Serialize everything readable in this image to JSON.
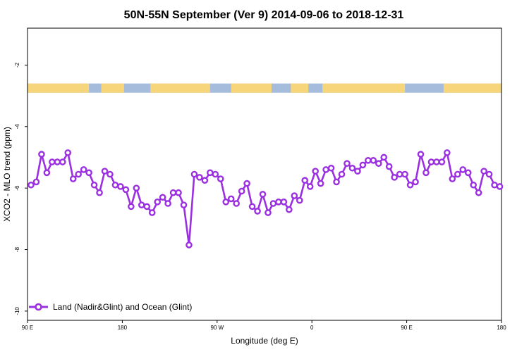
{
  "chart_data": {
    "type": "line",
    "title": "50N-55N September (Ver 9)   2014-09-06 to 2018-12-31",
    "xlabel": "Longitude (deg E)",
    "ylabel": "XCO2 - MLO trend (ppm)",
    "xlim": [
      -90,
      180
    ],
    "ylim": [
      -10.3,
      -0.8
    ],
    "yticks": [
      -2,
      -4,
      -6,
      -8,
      -10
    ],
    "xticks": [
      {
        "pos": -90,
        "label": "90 E"
      },
      {
        "pos": -36,
        "label": "180"
      },
      {
        "pos": 18,
        "label": "90 W"
      },
      {
        "pos": 72,
        "label": "0"
      },
      {
        "pos": 126,
        "label": "90 E"
      },
      {
        "pos": 180,
        "label": "180"
      }
    ],
    "grid": false,
    "legend_position": "bottom-left",
    "color": "#9b30e0",
    "land_color": "#f7d57a",
    "ocean_color": "#a6bcdc",
    "series": [
      {
        "name": "Land (Nadir&Glint) and Ocean (Glint)",
        "x": [
          -88,
          -85,
          -82,
          -79,
          -76,
          -73,
          -70,
          -67,
          -64,
          -61,
          -58,
          -55,
          -52,
          -49,
          -46,
          -43,
          -40,
          -37,
          -34,
          -31,
          -28,
          -25,
          -22,
          -19,
          -16,
          -13,
          -10,
          -7,
          -4,
          -1,
          2,
          5,
          8,
          11,
          14,
          17,
          20,
          23,
          26,
          29,
          32,
          35,
          38,
          41,
          44,
          47,
          50,
          53,
          56,
          59,
          62,
          65,
          68,
          71,
          74,
          77,
          80,
          83,
          86,
          89,
          92,
          95,
          98,
          101,
          104,
          107,
          110,
          113,
          116,
          119,
          122,
          125,
          128,
          131,
          134,
          137,
          140,
          143,
          146,
          149,
          152,
          155,
          158,
          161,
          164,
          167,
          170,
          173,
          176,
          179
        ],
        "y": [
          -5.9,
          -5.8,
          -4.9,
          -5.5,
          -5.15,
          -5.15,
          -5.15,
          -4.85,
          -5.7,
          -5.55,
          -5.4,
          -5.5,
          -5.9,
          -6.15,
          -5.45,
          -5.55,
          -5.9,
          -5.95,
          -6.05,
          -6.6,
          -6.0,
          -6.55,
          -6.6,
          -6.8,
          -6.45,
          -6.3,
          -6.5,
          -6.15,
          -6.15,
          -6.55,
          -7.85,
          -5.55,
          -5.65,
          -5.75,
          -5.5,
          -5.55,
          -5.7,
          -6.45,
          -6.35,
          -6.5,
          -6.1,
          -5.85,
          -6.6,
          -6.75,
          -6.2,
          -6.8,
          -6.5,
          -6.45,
          -6.45,
          -6.7,
          -6.25,
          -6.4,
          -5.75,
          -5.95,
          -5.45,
          -5.85,
          -5.4,
          -5.35,
          -5.8,
          -5.55,
          -5.2,
          -5.35,
          -5.45,
          -5.25,
          -5.1,
          -5.1,
          -5.2,
          -5.0,
          -5.3,
          -5.65,
          -5.55,
          -5.55,
          -5.9,
          -5.8,
          -4.9,
          -5.5,
          -5.15,
          -5.15,
          -5.15,
          -4.85,
          -5.7,
          -5.55,
          -5.4,
          -5.5,
          -5.9,
          -6.15,
          -5.45,
          -5.55,
          -5.9,
          -5.95
        ]
      }
    ],
    "map_strip": {
      "y_top": -2.6,
      "y_bottom": -2.9,
      "land_spans": [
        [
          -90,
          -59
        ],
        [
          -59,
          -55
        ],
        [
          -48,
          -35
        ],
        [
          -20,
          14
        ],
        [
          26,
          49
        ],
        [
          60,
          70
        ],
        [
          78,
          125
        ],
        [
          147,
          183
        ]
      ]
    }
  }
}
